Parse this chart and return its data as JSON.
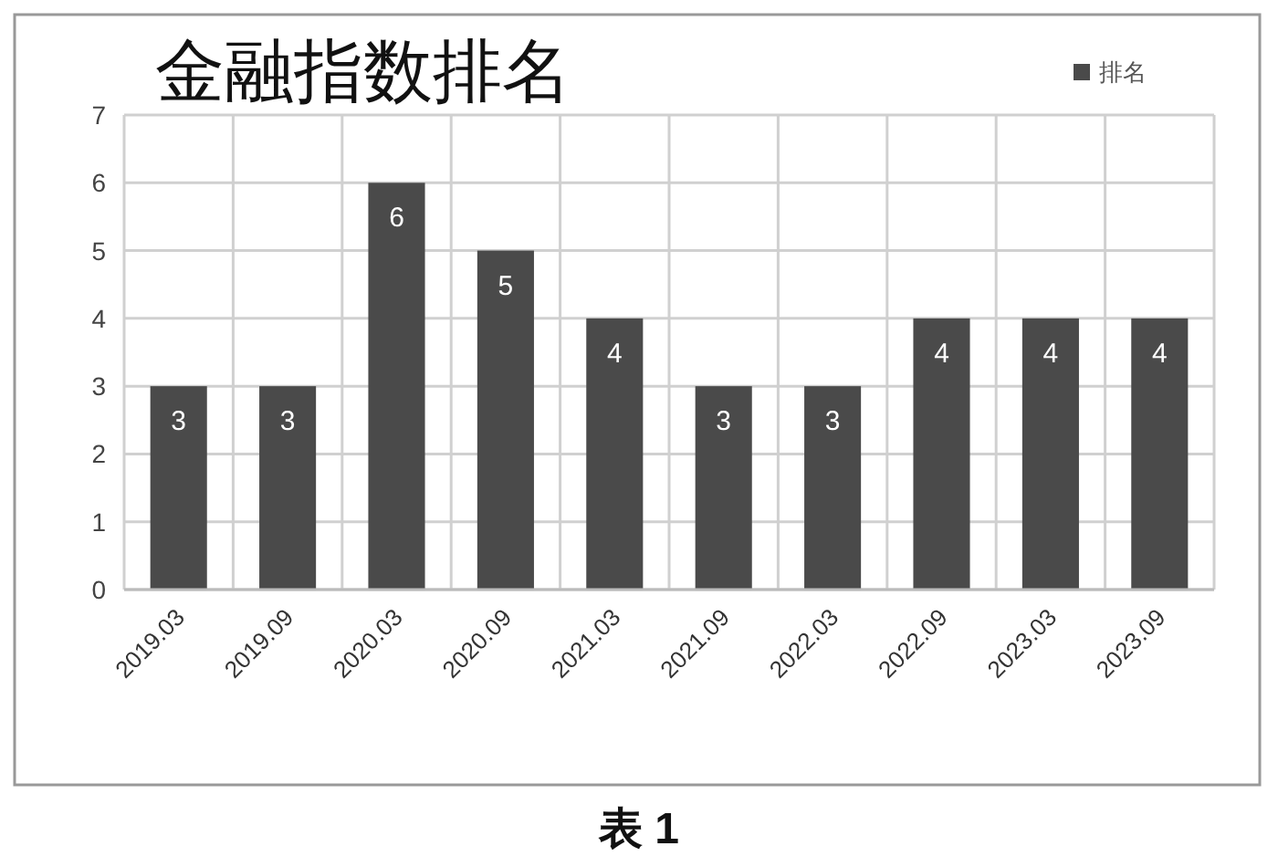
{
  "chart_data": {
    "type": "bar",
    "title": "金融指数排名",
    "categories": [
      "2019.03",
      "2019.09",
      "2020.03",
      "2020.09",
      "2021.03",
      "2021.09",
      "2022.03",
      "2022.09",
      "2023.03",
      "2023.09"
    ],
    "series": [
      {
        "name": "排名",
        "color": "#4a4a4a",
        "values": [
          3,
          3,
          6,
          5,
          4,
          3,
          3,
          4,
          4,
          4
        ]
      }
    ],
    "ylim": [
      0,
      7
    ],
    "yticks": [
      0,
      1,
      2,
      3,
      4,
      5,
      6,
      7
    ],
    "grid": true,
    "legend": "top right",
    "data_labels": true,
    "annotations": [
      "表 1"
    ]
  }
}
